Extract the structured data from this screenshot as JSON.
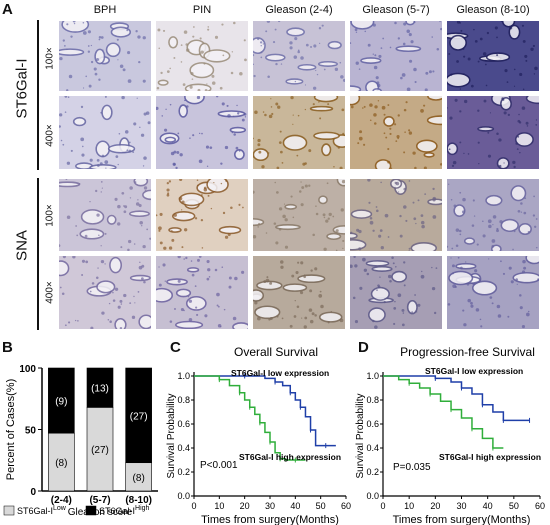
{
  "panel_a": {
    "letter": "A",
    "columns": [
      "BPH",
      "PIN",
      "Gleason (2-4)",
      "Gleason (5-7)",
      "Gleason (8-10)"
    ],
    "stains": [
      "ST6Gal-I",
      "SNA"
    ],
    "magnifications": [
      "100×",
      "400×"
    ]
  },
  "panel_b": {
    "letter": "B",
    "chart_data": {
      "type": "bar",
      "stacked": true,
      "categories": [
        "(2-4)",
        "(5-7)",
        "(8-10)"
      ],
      "xlabel": "Gleason score",
      "ylabel": "Percent of Cases(%)",
      "ylim": [
        0,
        100
      ],
      "yticks": [
        "0",
        "50",
        "100"
      ],
      "series": [
        {
          "legend_base": "ST6Gal-I",
          "legend_sup": "Low",
          "color": "#d9d9d9",
          "values": [
            47,
            68,
            23
          ],
          "counts": [
            "(8)",
            "(27)",
            "(8)"
          ]
        },
        {
          "legend_base": "ST6Gal-I",
          "legend_sup": "High",
          "color": "#000000",
          "values": [
            53,
            32,
            77
          ],
          "counts": [
            "(9)",
            "(13)",
            "(27)"
          ]
        }
      ]
    }
  },
  "panel_c": {
    "letter": "C",
    "chart_data": {
      "type": "line",
      "title": "Overall Survival",
      "xlabel": "Times from surgery(Months)",
      "ylabel": "Survival Probability",
      "xlim": [
        0,
        60
      ],
      "ylim": [
        0,
        1.0
      ],
      "xticks": [
        "0",
        "10",
        "20",
        "30",
        "40",
        "50",
        "60"
      ],
      "yticks": [
        "0.0",
        "0.2",
        "0.4",
        "0.6",
        "0.8",
        "1.0"
      ],
      "pvalue": "P<0.001",
      "series": [
        {
          "label": "ST6Gal-I low expression",
          "color": "#1f3fa8",
          "x": [
            0,
            10,
            20,
            28,
            32,
            35,
            38,
            40,
            42,
            44,
            46,
            48,
            52,
            56
          ],
          "y": [
            1.0,
            1.0,
            1.0,
            0.98,
            0.95,
            0.92,
            0.86,
            0.8,
            0.74,
            0.66,
            0.55,
            0.42,
            0.42,
            0.42
          ]
        },
        {
          "label": "ST6Gal-I high expression",
          "color": "#2fae3a",
          "x": [
            0,
            5,
            10,
            14,
            18,
            20,
            22,
            24,
            26,
            28,
            30,
            32,
            34,
            36,
            40,
            44
          ],
          "y": [
            1.0,
            1.0,
            0.97,
            0.92,
            0.86,
            0.8,
            0.74,
            0.68,
            0.61,
            0.53,
            0.45,
            0.36,
            0.31,
            0.3,
            0.3,
            0.3
          ]
        }
      ]
    }
  },
  "panel_d": {
    "letter": "D",
    "chart_data": {
      "type": "line",
      "title": "Progression-free Survival",
      "xlabel": "Times from surgery(Months)",
      "ylabel": "Survival Probability",
      "xlim": [
        0,
        60
      ],
      "ylim": [
        0,
        1.0
      ],
      "xticks": [
        "0",
        "10",
        "20",
        "30",
        "40",
        "50",
        "60"
      ],
      "yticks": [
        "0.0",
        "0.2",
        "0.4",
        "0.6",
        "0.8",
        "1.0"
      ],
      "pvalue": "P=0.035",
      "series": [
        {
          "label": "ST6Gal-I  low expression",
          "color": "#1f3fa8",
          "x": [
            0,
            10,
            20,
            26,
            30,
            34,
            38,
            42,
            46,
            50,
            56
          ],
          "y": [
            1.0,
            1.0,
            0.98,
            0.95,
            0.9,
            0.85,
            0.76,
            0.7,
            0.63,
            0.63,
            0.63
          ]
        },
        {
          "label": "ST6Gal-I high expression",
          "color": "#2fae3a",
          "x": [
            0,
            6,
            10,
            14,
            18,
            22,
            26,
            30,
            34,
            38,
            42,
            46
          ],
          "y": [
            1.0,
            0.97,
            0.94,
            0.9,
            0.85,
            0.79,
            0.72,
            0.65,
            0.56,
            0.48,
            0.4,
            0.4
          ]
        }
      ]
    }
  }
}
